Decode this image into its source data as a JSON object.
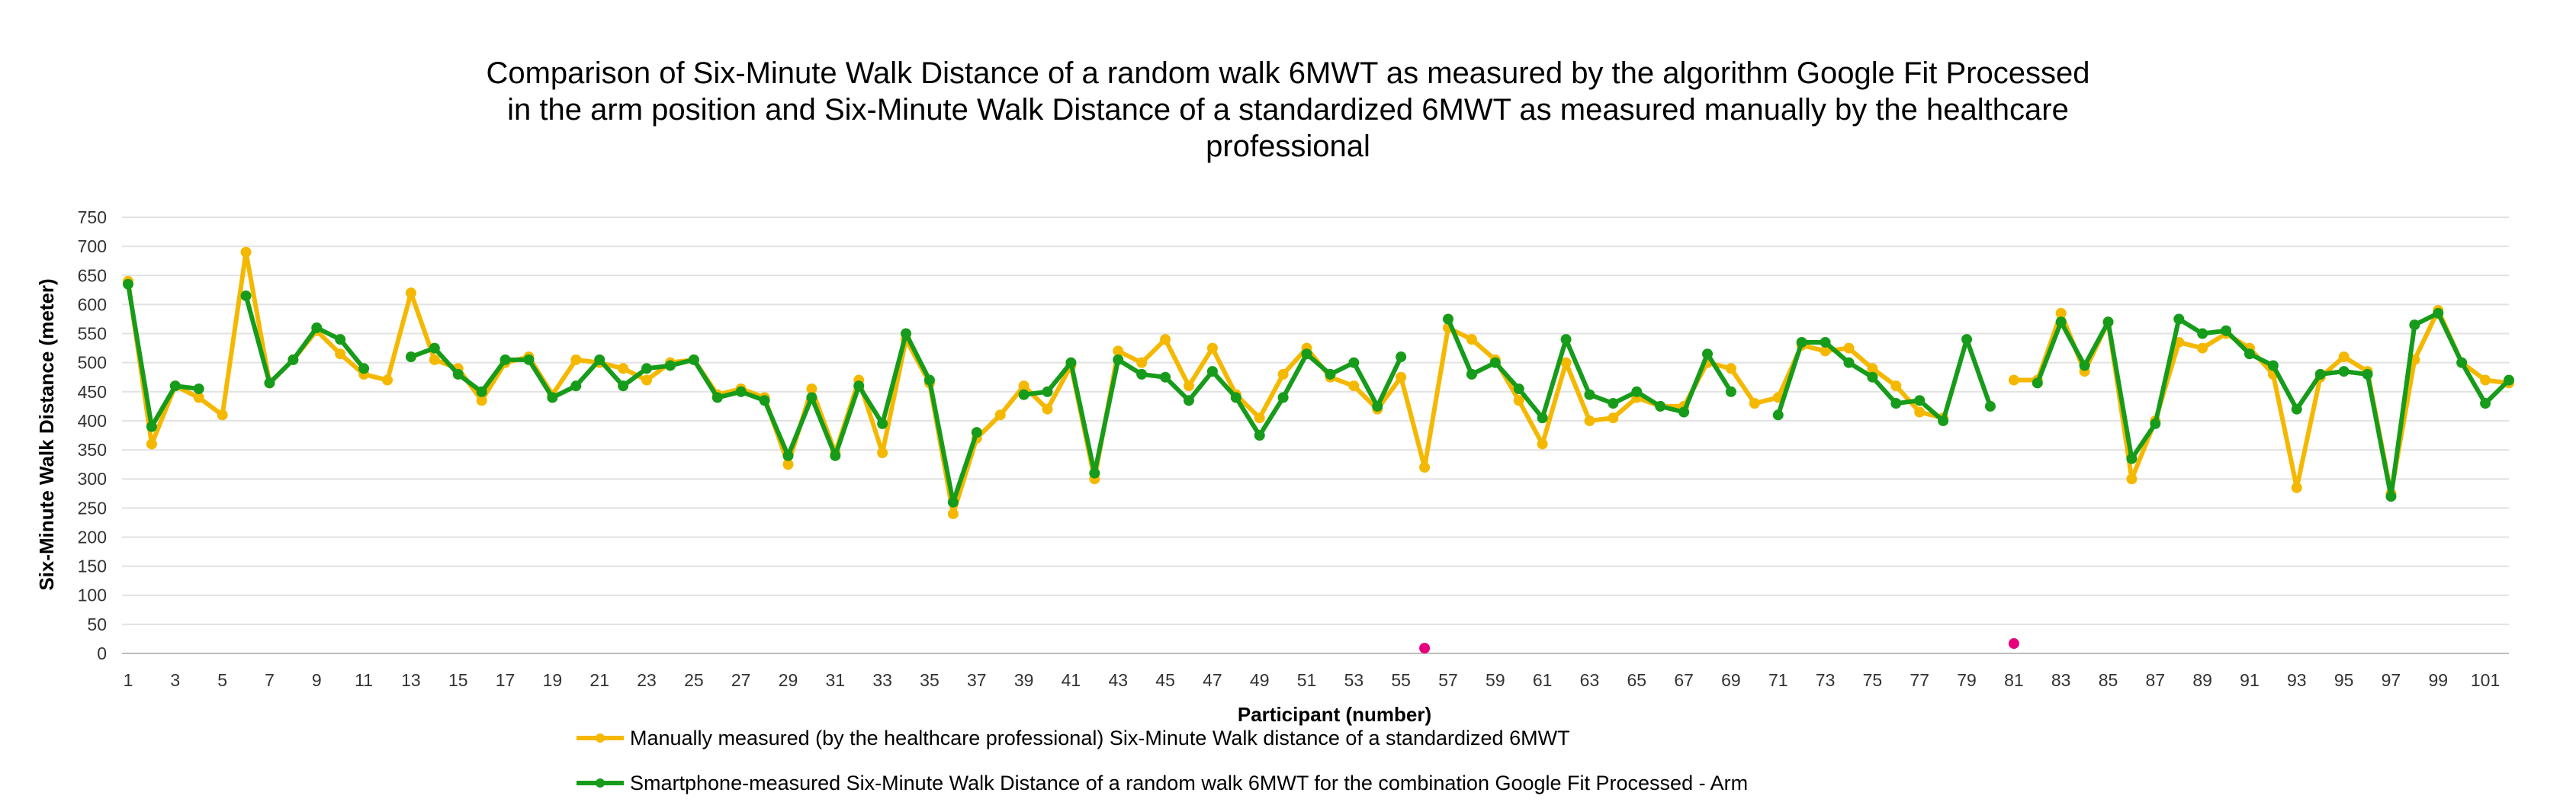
{
  "chart_data": {
    "type": "line",
    "title_lines": [
      "Comparison  of Six-Minute Walk Distance of a random  walk 6MWT as measured by the algorithm  Google Fit Processed",
      "in the arm position and Six-Minute Walk Distance of a standardized  6MWT as measured manually  by the healthcare",
      "professional"
    ],
    "xlabel": "Participant (number)",
    "ylabel": "Six-Minute Walk Distance (meter)",
    "ylim": [
      0,
      750
    ],
    "yticks": [
      0,
      50,
      100,
      150,
      200,
      250,
      300,
      350,
      400,
      450,
      500,
      550,
      600,
      650,
      700,
      750
    ],
    "xlim": [
      1,
      102
    ],
    "xtick_labels": [
      1,
      3,
      5,
      7,
      9,
      11,
      13,
      15,
      17,
      19,
      21,
      23,
      25,
      27,
      29,
      31,
      33,
      35,
      37,
      39,
      41,
      43,
      45,
      47,
      49,
      51,
      53,
      55,
      57,
      59,
      61,
      63,
      65,
      67,
      69,
      71,
      73,
      75,
      77,
      79,
      81,
      83,
      85,
      87,
      89,
      91,
      93,
      95,
      97,
      99,
      101
    ],
    "grid": true,
    "legend_position": "bottom-center",
    "series": [
      {
        "name": "Manually measured (by the healthcare professional) Six-Minute Walk distance of a standardized 6MWT",
        "color": "#F5B800",
        "values": [
          640,
          360,
          460,
          440,
          410,
          690,
          465,
          505,
          555,
          515,
          480,
          470,
          620,
          505,
          490,
          435,
          500,
          510,
          445,
          505,
          500,
          490,
          470,
          500,
          505,
          445,
          455,
          440,
          325,
          455,
          345,
          470,
          345,
          540,
          465,
          240,
          370,
          410,
          460,
          420,
          495,
          300,
          520,
          500,
          540,
          460,
          525,
          445,
          405,
          480,
          525,
          475,
          460,
          420,
          475,
          320,
          560,
          540,
          505,
          435,
          360,
          500,
          400,
          405,
          440,
          425,
          425,
          500,
          490,
          430,
          440,
          530,
          520,
          525,
          490,
          460,
          415,
          405,
          null,
          null,
          470,
          470,
          585,
          485,
          570,
          300,
          400,
          535,
          525,
          550,
          525,
          480,
          285,
          475,
          510,
          485,
          275,
          505,
          590,
          500,
          470,
          465
        ]
      },
      {
        "name": "Smartphone-measured Six-Minute Walk Distance of a random walk 6MWT for the combination Google Fit Processed - Arm",
        "color": "#169B1A",
        "values": [
          635,
          390,
          460,
          455,
          null,
          615,
          465,
          505,
          560,
          540,
          490,
          null,
          510,
          525,
          480,
          450,
          505,
          505,
          440,
          460,
          505,
          460,
          490,
          495,
          505,
          440,
          450,
          435,
          340,
          440,
          340,
          460,
          395,
          550,
          470,
          260,
          380,
          null,
          445,
          450,
          500,
          310,
          505,
          480,
          475,
          435,
          485,
          440,
          375,
          440,
          515,
          480,
          500,
          425,
          510,
          null,
          575,
          480,
          500,
          455,
          405,
          540,
          445,
          430,
          450,
          425,
          415,
          515,
          450,
          null,
          410,
          535,
          535,
          500,
          475,
          430,
          435,
          400,
          540,
          425,
          null,
          465,
          570,
          495,
          570,
          335,
          395,
          575,
          550,
          555,
          515,
          495,
          420,
          480,
          485,
          480,
          270,
          565,
          585,
          500,
          430,
          470
        ]
      }
    ],
    "markers": [
      {
        "x": 56,
        "y": 9,
        "color": "#E6007E"
      },
      {
        "x": 81,
        "y": 17,
        "color": "#E6007E"
      }
    ]
  }
}
